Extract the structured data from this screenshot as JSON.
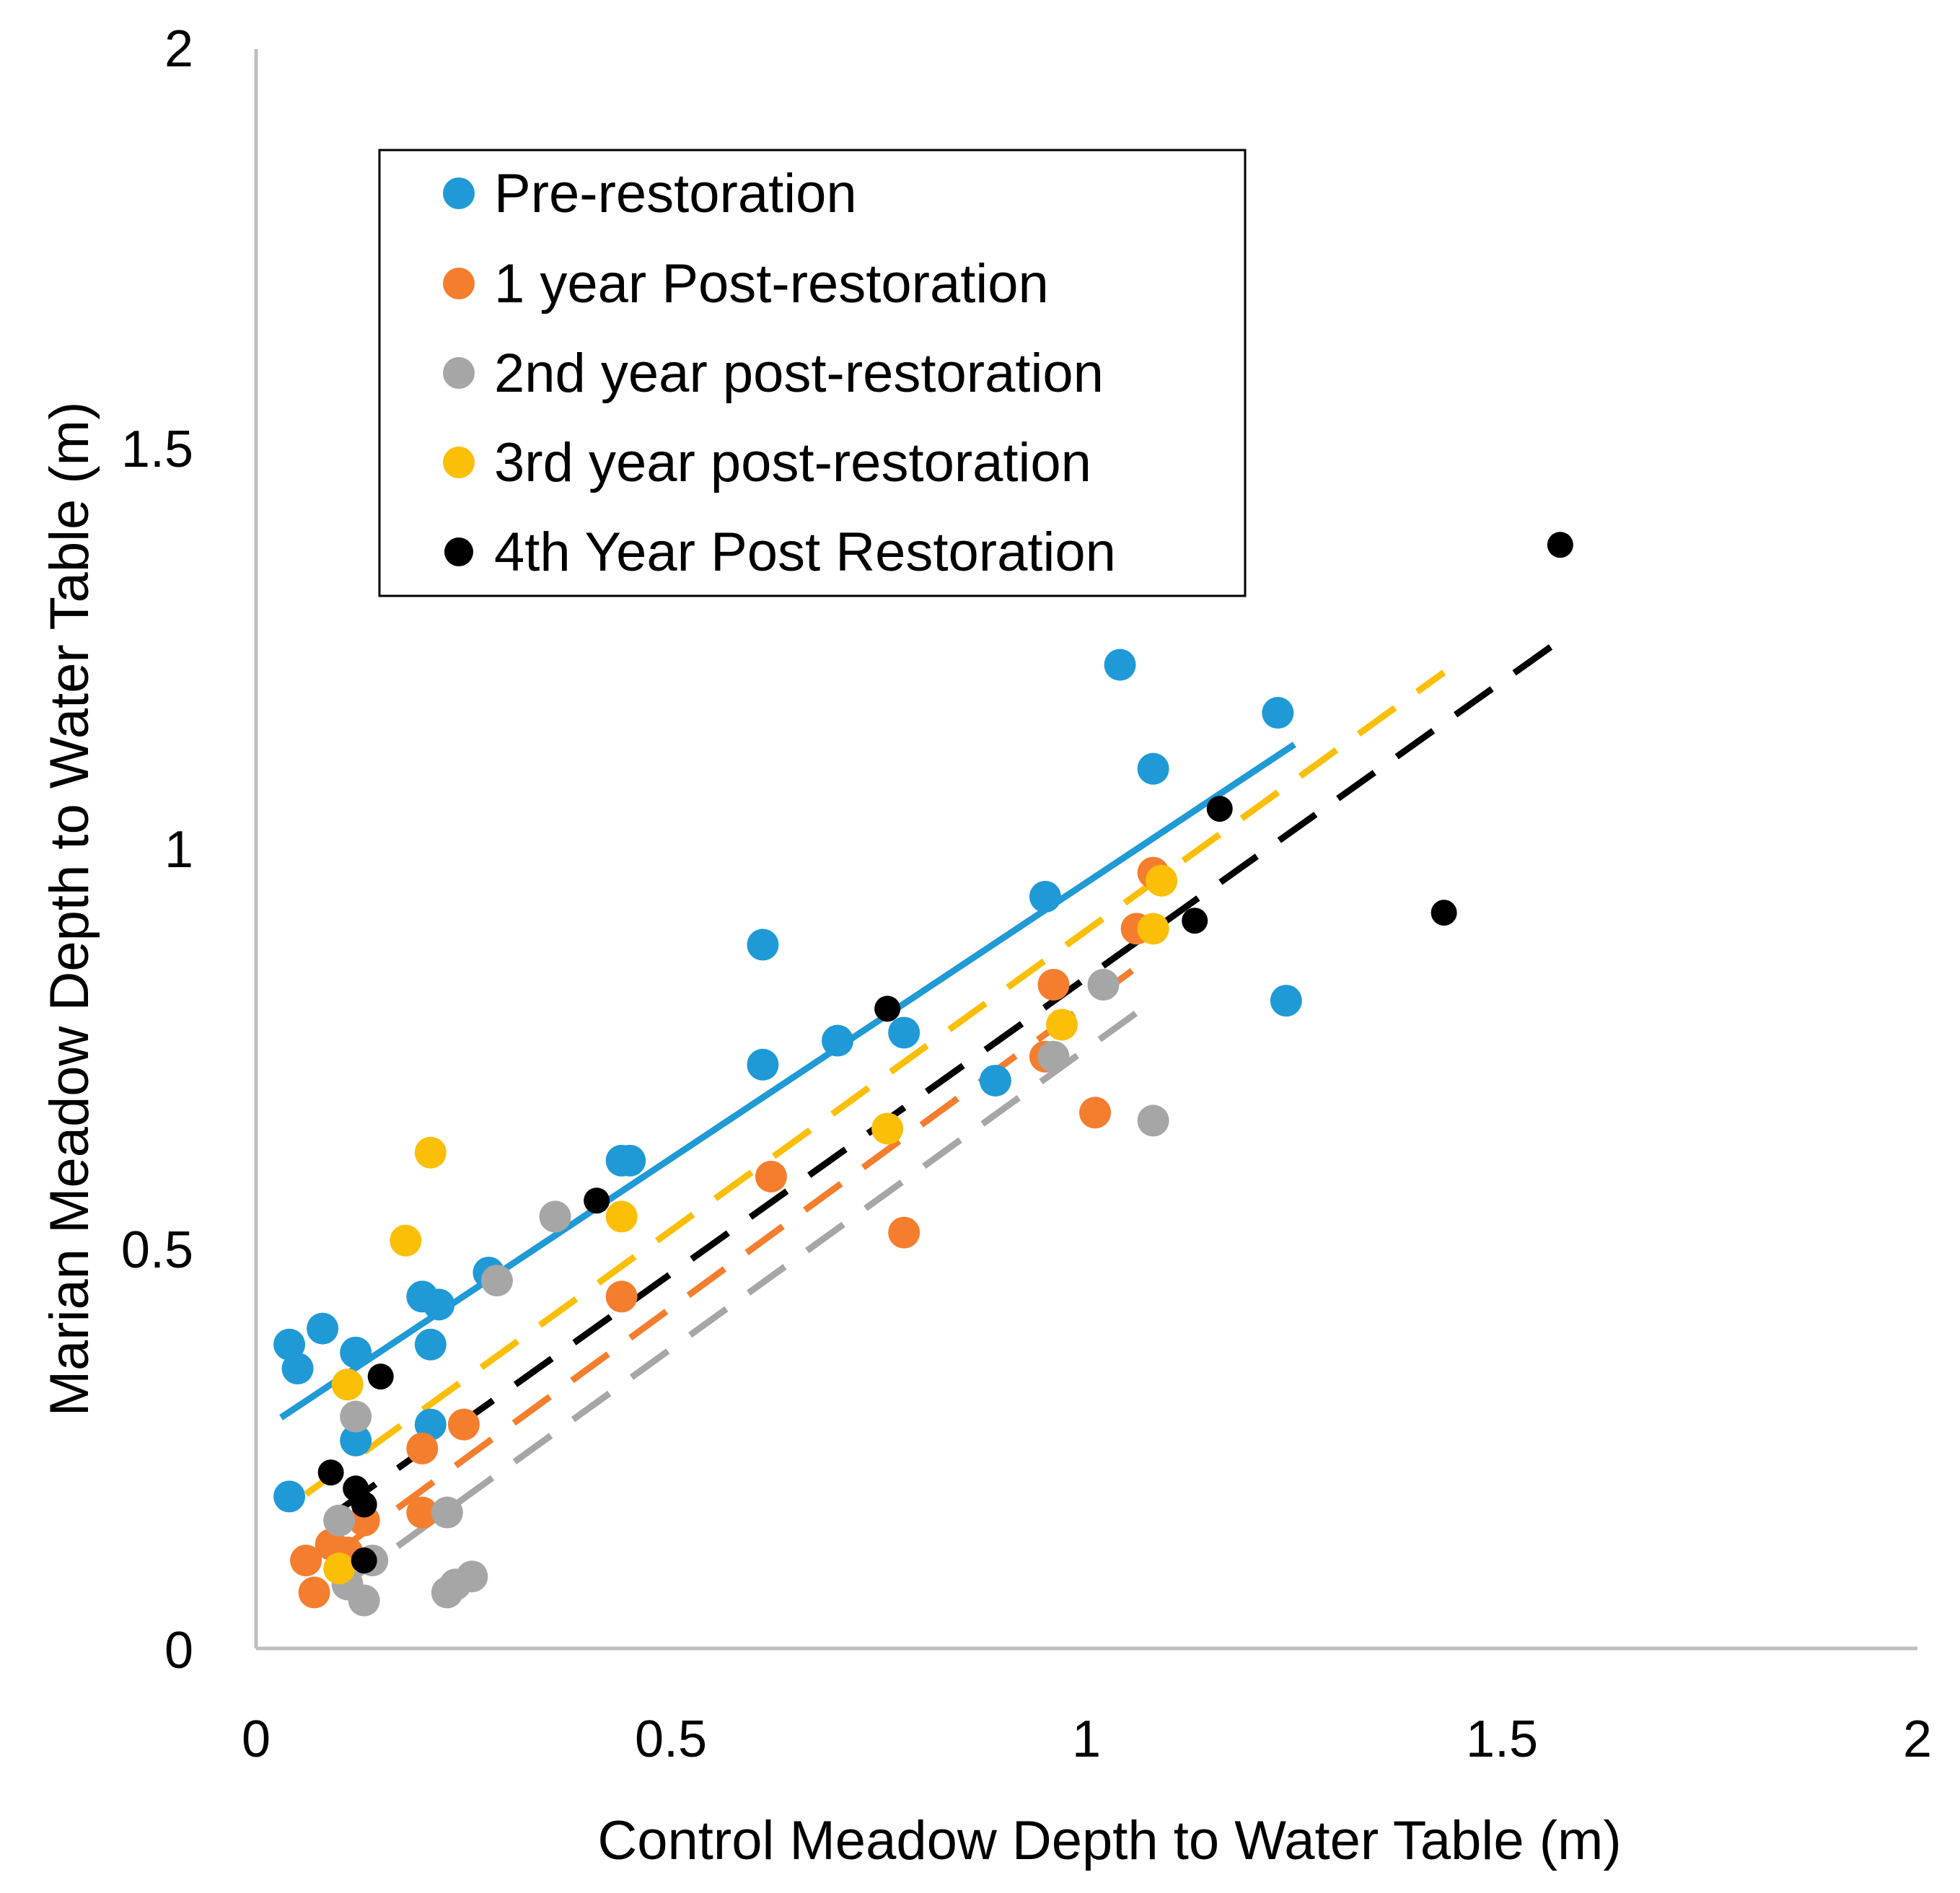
{
  "chart_data": {
    "type": "scatter",
    "title": "",
    "xlabel": "Control Meadow Depth to Water Table (m)",
    "ylabel": "Marian Meadow  Depth to Water Table (m)",
    "xlim": [
      0,
      2
    ],
    "ylim": [
      0,
      2
    ],
    "x_ticks": [
      "0",
      "0.5",
      "1",
      "1.5",
      "2"
    ],
    "y_ticks": [
      "0",
      "0.5",
      "1",
      "1.5",
      "2"
    ],
    "grid": false,
    "legend_position": "top-left",
    "series": [
      {
        "name": "Pre-restoration",
        "color": "#1f9ad6",
        "trendline": {
          "style": "solid",
          "x_range": [
            0.03,
            1.25
          ],
          "intercept": 0.268,
          "slope": 0.69
        },
        "points": [
          [
            0.04,
            0.38
          ],
          [
            0.05,
            0.35
          ],
          [
            0.08,
            0.4
          ],
          [
            0.12,
            0.37
          ],
          [
            0.12,
            0.26
          ],
          [
            0.2,
            0.44
          ],
          [
            0.21,
            0.38
          ],
          [
            0.22,
            0.43
          ],
          [
            0.21,
            0.28
          ],
          [
            0.04,
            0.19
          ],
          [
            0.28,
            0.47
          ],
          [
            0.44,
            0.61
          ],
          [
            0.45,
            0.61
          ],
          [
            0.61,
            0.88
          ],
          [
            0.61,
            0.73
          ],
          [
            0.7,
            0.76
          ],
          [
            0.78,
            0.77
          ],
          [
            0.89,
            0.71
          ],
          [
            0.95,
            0.94
          ],
          [
            1.04,
            1.23
          ],
          [
            1.08,
            1.1
          ],
          [
            1.23,
            1.17
          ],
          [
            1.24,
            0.81
          ]
        ]
      },
      {
        "name": "1 year Post-restoration",
        "color": "#f47e2e",
        "trendline": {
          "style": "dashed",
          "x_range": [
            0.1,
            1.07
          ],
          "intercept": 0.046,
          "slope": 0.76
        },
        "points": [
          [
            0.06,
            0.11
          ],
          [
            0.07,
            0.07
          ],
          [
            0.09,
            0.13
          ],
          [
            0.11,
            0.12
          ],
          [
            0.13,
            0.16
          ],
          [
            0.2,
            0.25
          ],
          [
            0.2,
            0.17
          ],
          [
            0.25,
            0.28
          ],
          [
            0.44,
            0.44
          ],
          [
            0.62,
            0.59
          ],
          [
            0.78,
            0.52
          ],
          [
            0.95,
            0.74
          ],
          [
            0.96,
            0.83
          ],
          [
            1.01,
            0.67
          ],
          [
            1.06,
            0.9
          ],
          [
            1.08,
            0.97
          ]
        ]
      },
      {
        "name": "2nd year post-restoration",
        "color": "#a6a6a6",
        "trendline": {
          "style": "dashed",
          "x_range": [
            0.1,
            1.08
          ],
          "intercept": 0.0,
          "slope": 0.75
        },
        "points": [
          [
            0.1,
            0.16
          ],
          [
            0.11,
            0.08
          ],
          [
            0.12,
            0.29
          ],
          [
            0.13,
            0.06
          ],
          [
            0.14,
            0.11
          ],
          [
            0.23,
            0.07
          ],
          [
            0.23,
            0.17
          ],
          [
            0.24,
            0.08
          ],
          [
            0.26,
            0.09
          ],
          [
            0.29,
            0.46
          ],
          [
            0.36,
            0.54
          ],
          [
            0.96,
            0.74
          ],
          [
            1.02,
            0.83
          ],
          [
            1.08,
            0.66
          ]
        ]
      },
      {
        "name": "3rd year post-restoration",
        "color": "#fbbf08",
        "trendline": {
          "style": "dashed",
          "x_range": [
            0.06,
            1.43
          ],
          "intercept": 0.148,
          "slope": 0.75
        },
        "points": [
          [
            0.1,
            0.1
          ],
          [
            0.11,
            0.33
          ],
          [
            0.18,
            0.51
          ],
          [
            0.21,
            0.62
          ],
          [
            0.44,
            0.54
          ],
          [
            0.76,
            0.65
          ],
          [
            0.97,
            0.78
          ],
          [
            1.08,
            0.9
          ],
          [
            1.09,
            0.96
          ]
        ]
      },
      {
        "name": "4th Year Post Restoration",
        "color": "#000000",
        "trendline": {
          "style": "dashed",
          "x_range": [
            0.1,
            1.57
          ],
          "intercept": 0.099,
          "slope": 0.74
        },
        "points": [
          [
            0.09,
            0.22
          ],
          [
            0.12,
            0.2
          ],
          [
            0.13,
            0.18
          ],
          [
            0.13,
            0.11
          ],
          [
            0.15,
            0.34
          ],
          [
            0.41,
            0.56
          ],
          [
            0.76,
            0.8
          ],
          [
            1.13,
            0.91
          ],
          [
            1.16,
            1.05
          ],
          [
            1.43,
            0.92
          ],
          [
            1.57,
            1.38
          ]
        ]
      }
    ]
  }
}
